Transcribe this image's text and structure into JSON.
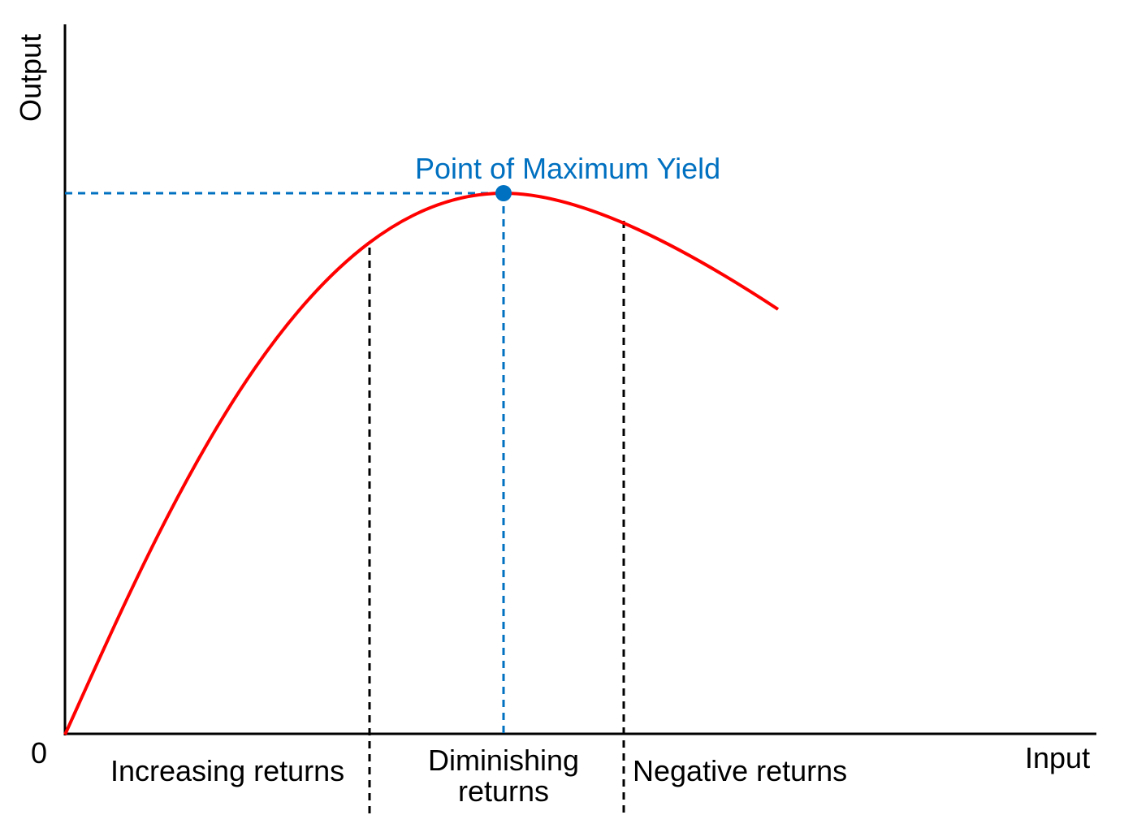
{
  "axes": {
    "y_label": "Output",
    "x_label": "Input",
    "origin": "0"
  },
  "annotation": "Point of Maximum Yield",
  "regions": [
    "Increasing returns",
    "Diminishing returns",
    "Negative returns"
  ]
}
